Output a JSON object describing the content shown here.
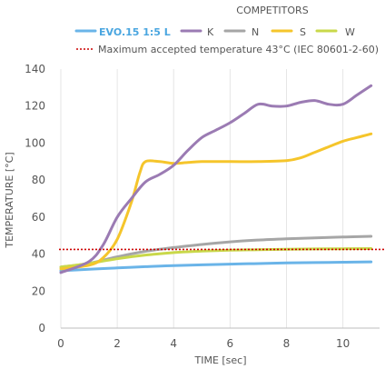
{
  "chart_data": {
    "type": "line",
    "legend_header": "COMPETITORS",
    "xlabel": "TIME [sec]",
    "ylabel": "TEMPERATURE [°C]",
    "xlim": [
      0,
      11.3
    ],
    "ylim": [
      0,
      140
    ],
    "x_ticks": [
      "0",
      "2",
      "4",
      "6",
      "8",
      "10"
    ],
    "y_ticks": [
      "0",
      "20",
      "40",
      "60",
      "80",
      "100",
      "120",
      "140"
    ],
    "grid": "vertical",
    "series": [
      {
        "name": "EVO.15 1:5 L",
        "color": "#6ab4e8",
        "x": [
          0,
          1,
          2,
          3,
          4,
          5,
          6,
          7,
          8,
          9,
          10,
          11
        ],
        "y": [
          31,
          31.8,
          32.5,
          33.2,
          33.8,
          34.2,
          34.6,
          34.9,
          35.2,
          35.4,
          35.6,
          35.8
        ]
      },
      {
        "name": "K",
        "color": "#9b7bb3",
        "x": [
          0,
          1,
          1.5,
          2,
          2.5,
          3,
          3.5,
          4,
          4.5,
          5,
          5.5,
          6,
          6.5,
          7,
          7.5,
          8,
          8.5,
          9,
          9.5,
          10,
          10.5,
          11
        ],
        "y": [
          30,
          36,
          45,
          60,
          70,
          79,
          83,
          88,
          96,
          103,
          107,
          111,
          116,
          121,
          120,
          120,
          122,
          123,
          121,
          121,
          126,
          131
        ]
      },
      {
        "name": "N",
        "color": "#a6a6a6",
        "x": [
          0,
          1,
          2,
          3,
          4,
          5,
          6,
          7,
          8,
          9,
          10,
          11
        ],
        "y": [
          33,
          35,
          38.5,
          41.5,
          43.5,
          45.2,
          46.6,
          47.6,
          48.3,
          48.8,
          49.2,
          49.6
        ]
      },
      {
        "name": "S",
        "color": "#f5c52b",
        "x": [
          0,
          1,
          1.5,
          2,
          2.5,
          2.8,
          3,
          3.5,
          4,
          4.5,
          5,
          6,
          7,
          8,
          8.5,
          9,
          9.5,
          10,
          10.5,
          11
        ],
        "y": [
          32,
          34,
          38,
          48,
          68,
          84,
          90,
          90,
          89,
          89.5,
          90,
          90,
          90,
          90.5,
          92,
          95,
          98,
          101,
          103,
          105
        ]
      },
      {
        "name": "W",
        "color": "#c9d84a",
        "x": [
          0,
          1,
          2,
          3,
          4,
          5,
          6,
          7,
          8,
          9,
          10,
          11
        ],
        "y": [
          33,
          35,
          37.5,
          39.5,
          40.8,
          41.6,
          42.1,
          42.4,
          42.6,
          42.8,
          42.9,
          43
        ]
      }
    ],
    "reference_line": {
      "label": "Maximum accepted temperature 43°C (IEC 80601-2-60)",
      "y": 42.5,
      "color": "#cc0000"
    }
  }
}
